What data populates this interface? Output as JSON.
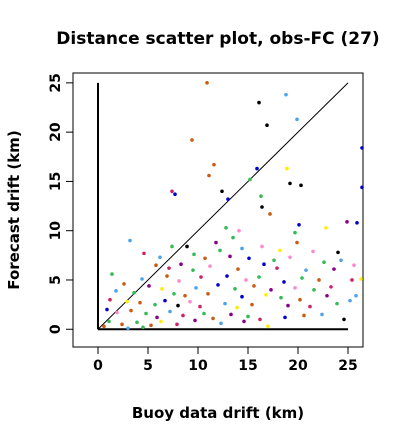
{
  "chart_data": {
    "type": "scatter",
    "title": "Distance scatter plot, obs-FC (27)",
    "xlabel": "Buoy data drift (km)",
    "ylabel": "Forecast drift (km)",
    "xlim": [
      -2.5,
      26.5
    ],
    "ylim": [
      -1.8,
      26.0
    ],
    "x_ticks": [
      0,
      5,
      10,
      15,
      20,
      25
    ],
    "y_ticks": [
      0,
      5,
      10,
      15,
      20,
      25
    ],
    "grid": false,
    "legend": "none",
    "reference_lines": [
      {
        "name": "identity",
        "points": [
          [
            0,
            0
          ],
          [
            25,
            25
          ]
        ]
      },
      {
        "name": "axis-x",
        "points": [
          [
            0,
            0
          ],
          [
            25,
            0
          ]
        ]
      },
      {
        "name": "axis-y",
        "points": [
          [
            0,
            0
          ],
          [
            0,
            25
          ]
        ]
      }
    ],
    "points": [
      {
        "x": 10.9,
        "y": 25.0,
        "color": "#cc5a10"
      },
      {
        "x": 16.1,
        "y": 23.0,
        "color": "#000000"
      },
      {
        "x": 18.8,
        "y": 23.8,
        "color": "#4da3e8"
      },
      {
        "x": 16.9,
        "y": 20.7,
        "color": "#000000"
      },
      {
        "x": 19.9,
        "y": 21.3,
        "color": "#4da3e8"
      },
      {
        "x": 9.4,
        "y": 19.2,
        "color": "#cc5a10"
      },
      {
        "x": 26.4,
        "y": 18.4,
        "color": "#0000cc"
      },
      {
        "x": 11.6,
        "y": 16.7,
        "color": "#cc5a10"
      },
      {
        "x": 15.9,
        "y": 16.3,
        "color": "#0000cc"
      },
      {
        "x": 18.9,
        "y": 16.3,
        "color": "#ffee00"
      },
      {
        "x": 11.1,
        "y": 15.6,
        "color": "#cc5a10"
      },
      {
        "x": 15.2,
        "y": 15.2,
        "color": "#33bb55"
      },
      {
        "x": 19.2,
        "y": 14.8,
        "color": "#000000"
      },
      {
        "x": 20.3,
        "y": 14.6,
        "color": "#000000"
      },
      {
        "x": 26.4,
        "y": 14.4,
        "color": "#0000cc"
      },
      {
        "x": 7.4,
        "y": 14.0,
        "color": "#cc2266"
      },
      {
        "x": 7.7,
        "y": 13.7,
        "color": "#0000cc"
      },
      {
        "x": 12.4,
        "y": 14.0,
        "color": "#000000"
      },
      {
        "x": 16.3,
        "y": 13.5,
        "color": "#33bb55"
      },
      {
        "x": 13.0,
        "y": 13.2,
        "color": "#0000cc"
      },
      {
        "x": 16.4,
        "y": 12.4,
        "color": "#000000"
      },
      {
        "x": 17.2,
        "y": 11.7,
        "color": "#cc5a10"
      },
      {
        "x": 20.1,
        "y": 10.6,
        "color": "#0000cc"
      },
      {
        "x": 24.9,
        "y": 10.9,
        "color": "#880088"
      },
      {
        "x": 25.9,
        "y": 10.8,
        "color": "#0000cc"
      },
      {
        "x": 22.8,
        "y": 10.3,
        "color": "#ffee00"
      },
      {
        "x": 12.8,
        "y": 10.3,
        "color": "#33bb55"
      },
      {
        "x": 14.1,
        "y": 10.0,
        "color": "#ff88cc"
      },
      {
        "x": 19.7,
        "y": 9.8,
        "color": "#33bb55"
      },
      {
        "x": 13.5,
        "y": 9.3,
        "color": "#33bb55"
      },
      {
        "x": 3.2,
        "y": 9.0,
        "color": "#4da3e8"
      },
      {
        "x": 8.9,
        "y": 8.4,
        "color": "#000000"
      },
      {
        "x": 11.8,
        "y": 8.8,
        "color": "#880088"
      },
      {
        "x": 12.2,
        "y": 8.0,
        "color": "#33bb55"
      },
      {
        "x": 14.4,
        "y": 8.2,
        "color": "#4da3e8"
      },
      {
        "x": 16.4,
        "y": 8.4,
        "color": "#ff88cc"
      },
      {
        "x": 18.2,
        "y": 8.0,
        "color": "#ffee00"
      },
      {
        "x": 19.9,
        "y": 8.8,
        "color": "#cc5a10"
      },
      {
        "x": 21.5,
        "y": 7.9,
        "color": "#ff88cc"
      },
      {
        "x": 24.0,
        "y": 7.8,
        "color": "#000000"
      },
      {
        "x": 4.6,
        "y": 7.7,
        "color": "#cc2266"
      },
      {
        "x": 6.2,
        "y": 7.3,
        "color": "#4da3e8"
      },
      {
        "x": 7.4,
        "y": 8.4,
        "color": "#33bb55"
      },
      {
        "x": 9.6,
        "y": 7.6,
        "color": "#33bb55"
      },
      {
        "x": 10.7,
        "y": 7.2,
        "color": "#cc5a10"
      },
      {
        "x": 13.2,
        "y": 7.4,
        "color": "#880088"
      },
      {
        "x": 15.1,
        "y": 7.2,
        "color": "#0000cc"
      },
      {
        "x": 17.6,
        "y": 7.0,
        "color": "#33bb55"
      },
      {
        "x": 19.2,
        "y": 7.3,
        "color": "#ff88cc"
      },
      {
        "x": 22.6,
        "y": 6.8,
        "color": "#33bb55"
      },
      {
        "x": 24.3,
        "y": 7.0,
        "color": "#4da3e8"
      },
      {
        "x": 25.6,
        "y": 6.5,
        "color": "#ff88cc"
      },
      {
        "x": 5.8,
        "y": 6.5,
        "color": "#cc5a10"
      },
      {
        "x": 7.1,
        "y": 6.2,
        "color": "#cc2266"
      },
      {
        "x": 8.3,
        "y": 6.6,
        "color": "#880088"
      },
      {
        "x": 9.5,
        "y": 6.0,
        "color": "#33bb55"
      },
      {
        "x": 11.2,
        "y": 6.4,
        "color": "#ff88cc"
      },
      {
        "x": 14.0,
        "y": 6.1,
        "color": "#cc5a10"
      },
      {
        "x": 16.6,
        "y": 6.6,
        "color": "#0000cc"
      },
      {
        "x": 17.9,
        "y": 6.2,
        "color": "#cc2266"
      },
      {
        "x": 20.8,
        "y": 6.0,
        "color": "#4da3e8"
      },
      {
        "x": 23.6,
        "y": 6.1,
        "color": "#880088"
      },
      {
        "x": 1.4,
        "y": 5.6,
        "color": "#33bb55"
      },
      {
        "x": 4.4,
        "y": 5.1,
        "color": "#4da3e8"
      },
      {
        "x": 6.9,
        "y": 5.4,
        "color": "#cc5a10"
      },
      {
        "x": 8.1,
        "y": 4.9,
        "color": "#ff88cc"
      },
      {
        "x": 10.3,
        "y": 5.3,
        "color": "#cc2266"
      },
      {
        "x": 12.9,
        "y": 5.4,
        "color": "#0000cc"
      },
      {
        "x": 14.8,
        "y": 5.0,
        "color": "#ff88cc"
      },
      {
        "x": 16.1,
        "y": 5.3,
        "color": "#33bb55"
      },
      {
        "x": 18.6,
        "y": 4.8,
        "color": "#0000cc"
      },
      {
        "x": 20.4,
        "y": 5.2,
        "color": "#33bb55"
      },
      {
        "x": 22.1,
        "y": 5.0,
        "color": "#cc5a10"
      },
      {
        "x": 25.4,
        "y": 5.0,
        "color": "#cc2266"
      },
      {
        "x": 26.3,
        "y": 5.1,
        "color": "#ffee00"
      },
      {
        "x": 2.6,
        "y": 4.6,
        "color": "#cc5a10"
      },
      {
        "x": 5.1,
        "y": 4.4,
        "color": "#880088"
      },
      {
        "x": 6.4,
        "y": 4.1,
        "color": "#ffee00"
      },
      {
        "x": 9.8,
        "y": 4.2,
        "color": "#4da3e8"
      },
      {
        "x": 12.0,
        "y": 4.5,
        "color": "#0000cc"
      },
      {
        "x": 13.7,
        "y": 4.1,
        "color": "#33bb55"
      },
      {
        "x": 15.6,
        "y": 4.4,
        "color": "#cc5a10"
      },
      {
        "x": 17.3,
        "y": 4.0,
        "color": "#880088"
      },
      {
        "x": 19.7,
        "y": 4.2,
        "color": "#ff88cc"
      },
      {
        "x": 21.6,
        "y": 4.0,
        "color": "#33bb55"
      },
      {
        "x": 23.3,
        "y": 4.3,
        "color": "#cc2266"
      },
      {
        "x": 1.8,
        "y": 3.9,
        "color": "#4da3e8"
      },
      {
        "x": 3.6,
        "y": 3.7,
        "color": "#33bb55"
      },
      {
        "x": 7.6,
        "y": 3.6,
        "color": "#33bb55"
      },
      {
        "x": 8.7,
        "y": 3.4,
        "color": "#cc5a10"
      },
      {
        "x": 11.0,
        "y": 3.6,
        "color": "#cc5a10"
      },
      {
        "x": 14.4,
        "y": 3.3,
        "color": "#0000cc"
      },
      {
        "x": 16.8,
        "y": 3.5,
        "color": "#ffee00"
      },
      {
        "x": 18.3,
        "y": 3.2,
        "color": "#33bb55"
      },
      {
        "x": 20.2,
        "y": 3.0,
        "color": "#cc5a10"
      },
      {
        "x": 22.9,
        "y": 3.4,
        "color": "#880088"
      },
      {
        "x": 25.8,
        "y": 3.4,
        "color": "#4da3e8"
      },
      {
        "x": 1.2,
        "y": 3.0,
        "color": "#cc2266"
      },
      {
        "x": 2.9,
        "y": 2.8,
        "color": "#ffee00"
      },
      {
        "x": 4.2,
        "y": 2.7,
        "color": "#cc5a10"
      },
      {
        "x": 5.7,
        "y": 2.5,
        "color": "#33bb55"
      },
      {
        "x": 6.7,
        "y": 2.9,
        "color": "#0000cc"
      },
      {
        "x": 8.0,
        "y": 2.4,
        "color": "#000000"
      },
      {
        "x": 9.2,
        "y": 2.8,
        "color": "#ff88cc"
      },
      {
        "x": 10.2,
        "y": 2.3,
        "color": "#cc2266"
      },
      {
        "x": 12.7,
        "y": 2.6,
        "color": "#4da3e8"
      },
      {
        "x": 13.9,
        "y": 2.2,
        "color": "#ffee00"
      },
      {
        "x": 15.4,
        "y": 2.5,
        "color": "#cc5a10"
      },
      {
        "x": 19.0,
        "y": 2.4,
        "color": "#880088"
      },
      {
        "x": 21.2,
        "y": 2.3,
        "color": "#cc2266"
      },
      {
        "x": 23.9,
        "y": 2.6,
        "color": "#33bb55"
      },
      {
        "x": 25.2,
        "y": 2.9,
        "color": "#4da3e8"
      },
      {
        "x": 0.9,
        "y": 2.0,
        "color": "#0000cc"
      },
      {
        "x": 1.9,
        "y": 1.7,
        "color": "#ff88cc"
      },
      {
        "x": 3.3,
        "y": 1.9,
        "color": "#cc5a10"
      },
      {
        "x": 4.8,
        "y": 1.6,
        "color": "#33bb55"
      },
      {
        "x": 5.9,
        "y": 1.2,
        "color": "#880088"
      },
      {
        "x": 7.2,
        "y": 1.8,
        "color": "#4da3e8"
      },
      {
        "x": 8.5,
        "y": 1.4,
        "color": "#cc2266"
      },
      {
        "x": 10.6,
        "y": 1.6,
        "color": "#33bb55"
      },
      {
        "x": 11.5,
        "y": 1.1,
        "color": "#cc5a10"
      },
      {
        "x": 13.3,
        "y": 1.5,
        "color": "#880088"
      },
      {
        "x": 15.0,
        "y": 1.3,
        "color": "#33bb55"
      },
      {
        "x": 16.2,
        "y": 1.0,
        "color": "#cc2266"
      },
      {
        "x": 18.7,
        "y": 1.2,
        "color": "#0000cc"
      },
      {
        "x": 20.6,
        "y": 1.4,
        "color": "#cc5a10"
      },
      {
        "x": 22.4,
        "y": 1.5,
        "color": "#4da3e8"
      },
      {
        "x": 24.6,
        "y": 1.0,
        "color": "#000000"
      },
      {
        "x": 1.1,
        "y": 0.8,
        "color": "#33bb55"
      },
      {
        "x": 2.4,
        "y": 0.5,
        "color": "#cc5a10"
      },
      {
        "x": 3.9,
        "y": 0.7,
        "color": "#33bb55"
      },
      {
        "x": 5.3,
        "y": 0.4,
        "color": "#cc5a10"
      },
      {
        "x": 6.3,
        "y": 0.8,
        "color": "#ffee00"
      },
      {
        "x": 7.9,
        "y": 0.5,
        "color": "#cc2266"
      },
      {
        "x": 9.7,
        "y": 0.9,
        "color": "#880088"
      },
      {
        "x": 12.3,
        "y": 0.6,
        "color": "#4da3e8"
      },
      {
        "x": 14.6,
        "y": 0.8,
        "color": "#880088"
      },
      {
        "x": 17.0,
        "y": 0.3,
        "color": "#ffee00"
      },
      {
        "x": 0.6,
        "y": 0.3,
        "color": "#cc5a10"
      },
      {
        "x": 4.5,
        "y": 0.2,
        "color": "#33bb55"
      },
      {
        "x": 3.0,
        "y": 0.1,
        "color": "#4da3e8"
      }
    ]
  }
}
